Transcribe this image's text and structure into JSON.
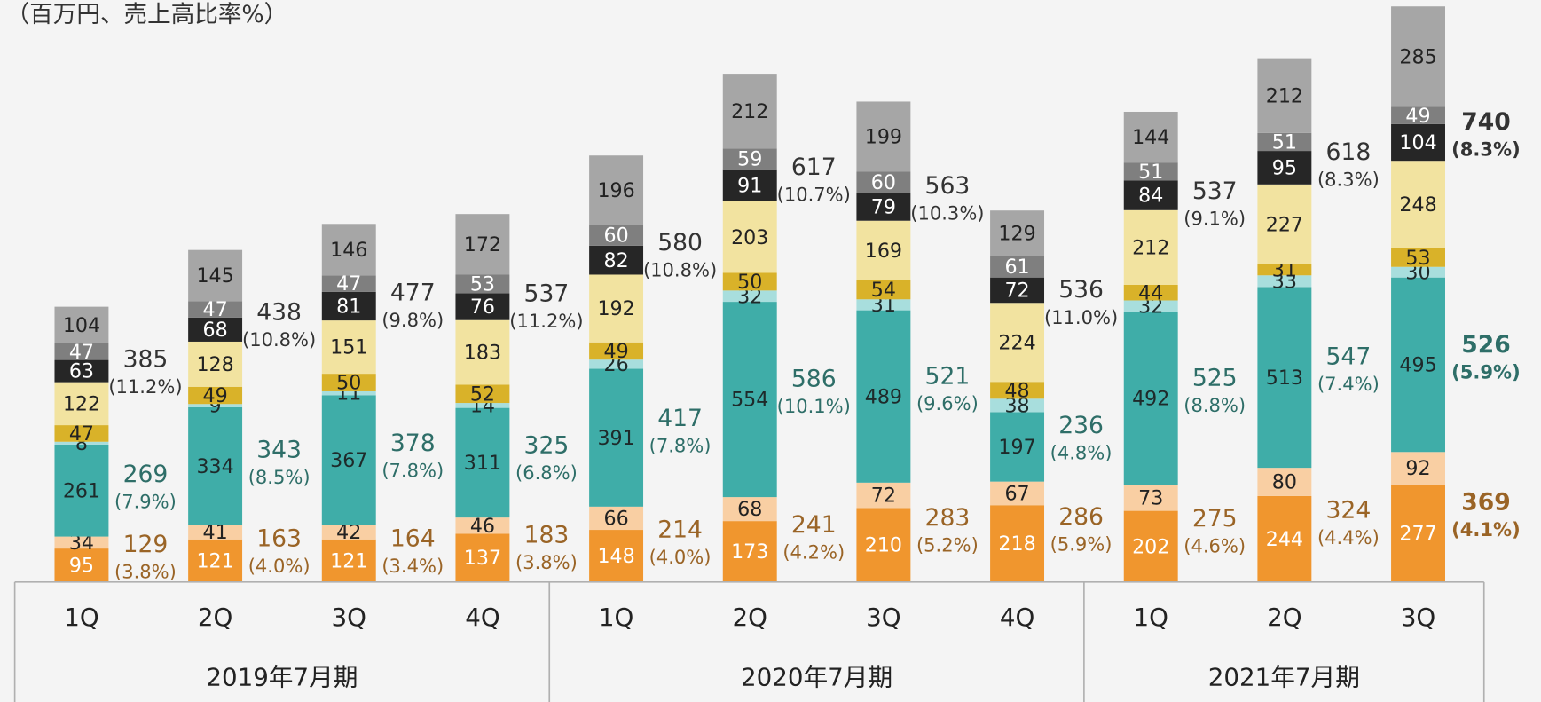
{
  "chart_data": {
    "type": "stacked_bar",
    "unit_label": "（百万円、売上高比率%）",
    "categories": [
      "1Q",
      "2Q",
      "3Q",
      "4Q",
      "1Q",
      "2Q",
      "3Q",
      "4Q",
      "1Q",
      "2Q",
      "3Q"
    ],
    "groups": [
      "2019年7月期",
      "2020年7月期",
      "2021年7月期"
    ],
    "group_sizes": [
      4,
      4,
      3
    ],
    "ylim": [
      0,
      1640
    ],
    "series": [
      {
        "color": "#f0962e",
        "label_color": "#ffffff",
        "values": [
          95,
          121,
          121,
          137,
          148,
          173,
          210,
          218,
          202,
          244,
          277
        ]
      },
      {
        "color": "#f9cfa3",
        "label_color": "#222222",
        "values": [
          34,
          41,
          42,
          46,
          66,
          68,
          72,
          67,
          73,
          80,
          92
        ]
      },
      {
        "color": "#3fada8",
        "label_color": "#1e2a2a",
        "values": [
          261,
          334,
          367,
          311,
          391,
          554,
          489,
          197,
          492,
          513,
          495
        ]
      },
      {
        "color": "#a8dedd",
        "label_color": "#1e2a2a",
        "values": [
          8,
          9,
          11,
          14,
          26,
          32,
          31,
          38,
          32,
          33,
          30
        ]
      },
      {
        "color": "#d9b229",
        "label_color": "#222222",
        "values": [
          47,
          49,
          50,
          52,
          49,
          50,
          54,
          48,
          44,
          31,
          53
        ]
      },
      {
        "color": "#f2e3a0",
        "label_color": "#222222",
        "values": [
          122,
          128,
          151,
          183,
          192,
          203,
          169,
          224,
          212,
          227,
          248
        ]
      },
      {
        "color": "#262626",
        "label_color": "#ffffff",
        "values": [
          63,
          68,
          81,
          76,
          82,
          91,
          79,
          72,
          84,
          95,
          104
        ]
      },
      {
        "color": "#7f7f7f",
        "label_color": "#ffffff",
        "values": [
          47,
          47,
          47,
          53,
          60,
          59,
          60,
          61,
          51,
          51,
          49
        ]
      },
      {
        "color": "#a6a6a6",
        "label_color": "#222222",
        "values": [
          104,
          145,
          146,
          172,
          196,
          212,
          199,
          129,
          144,
          212,
          285
        ]
      }
    ],
    "group_labels": [
      {
        "first_series": 0,
        "last_series": 1,
        "color": "#9a6426",
        "values": [
          129,
          163,
          164,
          183,
          214,
          241,
          283,
          286,
          275,
          324,
          369
        ],
        "ratios": [
          3.8,
          4.0,
          3.4,
          3.8,
          4.0,
          4.2,
          5.2,
          5.9,
          4.6,
          4.4,
          4.1
        ],
        "ratio_labels": [
          "(3.8%)",
          "(4.0%)",
          "(3.4%)",
          "(3.8%)",
          "(4.0%)",
          "(4.2%)",
          "(5.2%)",
          "(5.9%)",
          "(4.6%)",
          "(4.4%)",
          "(4.1%)"
        ]
      },
      {
        "first_series": 2,
        "last_series": 3,
        "color": "#2e6e68",
        "values": [
          269,
          343,
          378,
          325,
          417,
          586,
          521,
          236,
          525,
          547,
          526
        ],
        "ratios": [
          7.9,
          8.5,
          7.8,
          6.8,
          7.8,
          10.1,
          9.6,
          4.8,
          8.8,
          7.4,
          5.9
        ],
        "ratio_labels": [
          "(7.9%)",
          "(8.5%)",
          "(7.8%)",
          "(6.8%)",
          "(7.8%)",
          "(10.1%)",
          "(9.6%)",
          "(4.8%)",
          "(8.8%)",
          "(7.4%)",
          "(5.9%)"
        ]
      },
      {
        "first_series": 4,
        "last_series": 8,
        "color": "#333333",
        "values": [
          385,
          438,
          477,
          537,
          580,
          617,
          563,
          536,
          537,
          618,
          740
        ],
        "ratios": [
          11.2,
          10.8,
          9.8,
          11.2,
          10.8,
          10.7,
          10.3,
          11.0,
          9.1,
          8.3,
          8.3
        ],
        "ratio_labels": [
          "(11.2%)",
          "(10.8%)",
          "(9.8%)",
          "(11.2%)",
          "(10.8%)",
          "(10.7%)",
          "(10.3%)",
          "(11.0%)",
          "(9.1%)",
          "(8.3%)",
          "(8.3%)"
        ]
      }
    ]
  }
}
